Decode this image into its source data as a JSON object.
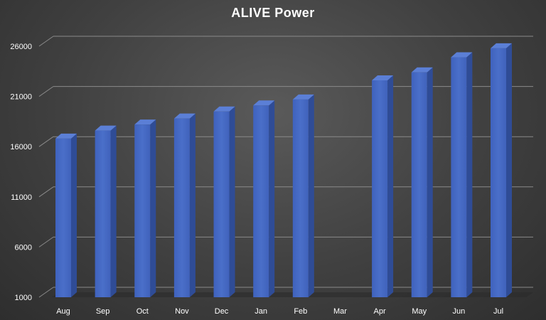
{
  "chart_data": {
    "type": "bar",
    "title": "ALIVE Power",
    "xlabel": "",
    "ylabel": "",
    "categories": [
      "Aug",
      "Sep",
      "Oct",
      "Nov",
      "Dec",
      "Jan",
      "Feb",
      "Mar",
      "Apr",
      "May",
      "Jun",
      "Jul"
    ],
    "values": [
      16800,
      17600,
      18200,
      18800,
      19500,
      20100,
      20700,
      null,
      22600,
      23400,
      24900,
      25800
    ],
    "yticks": [
      1000,
      6000,
      11000,
      16000,
      21000,
      26000
    ],
    "ylim": [
      1000,
      26000
    ],
    "grid": true,
    "legend": "none",
    "style": "3d-column"
  },
  "colors": {
    "bar_front": "#4a6fc9",
    "bar_side": "#2f4c96",
    "bar_top": "#5b7fd6",
    "gridline": "#8a8a8a",
    "text": "#ffffff"
  }
}
